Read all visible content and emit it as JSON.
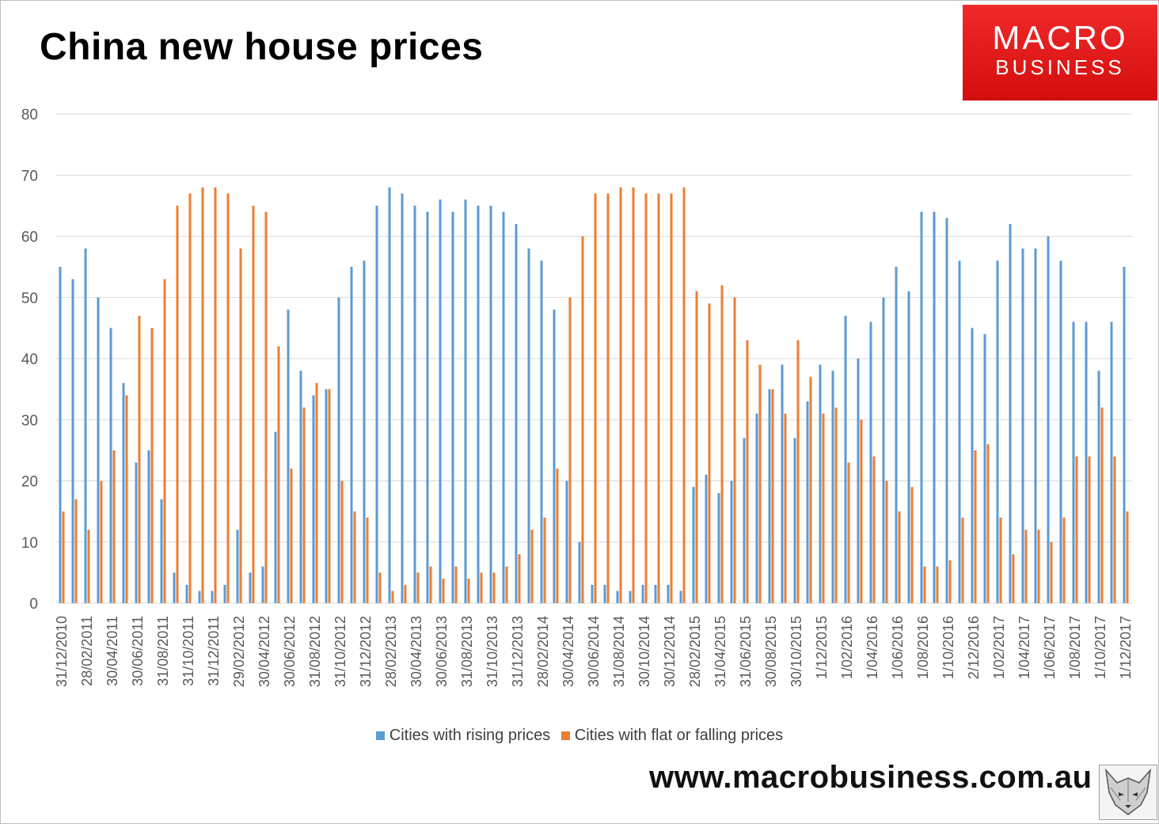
{
  "title": "China new house prices",
  "logo": {
    "line1": "MACRO",
    "line2": "BUSINESS"
  },
  "website": "www.macrobusiness.com.au",
  "colors": {
    "rising": "#5b9bd5",
    "falling": "#ed7d31",
    "logo_bg": "#e8131b",
    "grid": "#d9d9d9"
  },
  "chart_data": {
    "type": "bar",
    "title": "China new house prices",
    "ylim": [
      0,
      80
    ],
    "yticks": [
      0,
      10,
      20,
      30,
      40,
      50,
      60,
      70,
      80
    ],
    "grid": true,
    "legend": "bottom",
    "categories": [
      "31/12/2010",
      "",
      "28/02/2011",
      "",
      "30/04/2011",
      "",
      "30/06/2011",
      "",
      "31/08/2011",
      "",
      "31/10/2011",
      "",
      "31/12/2011",
      "",
      "29/02/2012",
      "",
      "30/04/2012",
      "",
      "30/06/2012",
      "",
      "31/08/2012",
      "",
      "31/10/2012",
      "",
      "31/12/2012",
      "",
      "28/02/2013",
      "",
      "30/04/2013",
      "",
      "30/06/2013",
      "",
      "31/08/2013",
      "",
      "31/10/2013",
      "",
      "31/12/2013",
      "",
      "28/02/2014",
      "",
      "30/04/2014",
      "",
      "30/06/2014",
      "",
      "31/08/2014",
      "",
      "30/10/2014",
      "",
      "30/12/2014",
      "",
      "28/02/2015",
      "",
      "31/04/2015",
      "",
      "31/06/2015",
      "",
      "30/08/2015",
      "",
      "30/10/2015",
      "",
      "1/12/2015",
      "",
      "1/02/2016",
      "",
      "1/04/2016",
      "",
      "1/06/2016",
      "",
      "1/08/2016",
      "",
      "1/10/2016",
      "",
      "2/12/2016",
      "",
      "1/02/2017",
      "",
      "1/04/2017",
      "",
      "1/06/2017",
      "",
      "1/08/2017",
      "",
      "1/10/2017",
      "",
      "1/12/2017"
    ],
    "series": [
      {
        "name": "Cities with rising prices",
        "values": [
          55,
          53,
          58,
          50,
          45,
          36,
          23,
          25,
          17,
          5,
          3,
          2,
          2,
          3,
          12,
          5,
          6,
          28,
          48,
          38,
          34,
          35,
          50,
          55,
          56,
          65,
          68,
          67,
          65,
          64,
          66,
          64,
          66,
          65,
          65,
          64,
          62,
          58,
          56,
          48,
          20,
          10,
          3,
          3,
          2,
          2,
          3,
          3,
          3,
          2,
          19,
          21,
          18,
          20,
          27,
          31,
          35,
          39,
          27,
          33,
          39,
          38,
          47,
          40,
          46,
          50,
          55,
          51,
          64,
          64,
          63,
          56,
          45,
          44,
          56,
          62,
          58,
          58,
          60,
          56,
          46,
          46,
          38,
          46,
          55
        ]
      },
      {
        "name": "Cities with flat or falling prices",
        "values": [
          15,
          17,
          12,
          20,
          25,
          34,
          47,
          45,
          53,
          65,
          67,
          68,
          68,
          67,
          58,
          65,
          64,
          42,
          22,
          32,
          36,
          35,
          20,
          15,
          14,
          5,
          2,
          3,
          5,
          6,
          4,
          6,
          4,
          5,
          5,
          6,
          8,
          12,
          14,
          22,
          50,
          60,
          67,
          67,
          68,
          68,
          67,
          67,
          67,
          68,
          51,
          49,
          52,
          50,
          43,
          39,
          35,
          31,
          43,
          37,
          31,
          32,
          23,
          30,
          24,
          20,
          15,
          19,
          6,
          6,
          7,
          14,
          25,
          26,
          14,
          8,
          12,
          12,
          10,
          14,
          24,
          24,
          32,
          24,
          15
        ]
      }
    ]
  }
}
